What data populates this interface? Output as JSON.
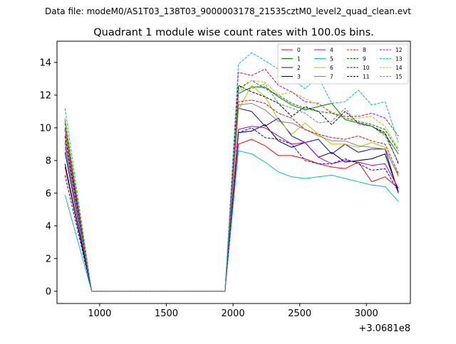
{
  "figure": {
    "suptitle": "Data file: modeM0/AS1T03_138T03_9000003178_21535cztM0_level2_quad_clean.evt",
    "title": "Quadrant 1 module wise count rates with 100.0s bins.",
    "x_offset_label": "+3.0681e8"
  },
  "chart_data": {
    "type": "line",
    "title": "Quadrant 1 module wise count rates with 100.0s bins.",
    "xlabel": "",
    "ylabel": "",
    "x_offset": 306810000,
    "xlim": [
      680,
      3330
    ],
    "ylim": [
      -0.75,
      15.3
    ],
    "xticks": [
      1000,
      1500,
      2000,
      2500,
      3000
    ],
    "xtick_labels": [
      "1000",
      "1500",
      "2000",
      "2500",
      "3000"
    ],
    "yticks": [
      0,
      2,
      4,
      6,
      8,
      10,
      12,
      14
    ],
    "ytick_labels": [
      "0",
      "2",
      "4",
      "6",
      "8",
      "10",
      "12",
      "14"
    ],
    "grid": false,
    "legend_position": "top-right",
    "x": [
      740,
      940,
      1040,
      1140,
      1240,
      1340,
      1440,
      1540,
      1640,
      1740,
      1840,
      1940,
      2040,
      2140,
      2240,
      2340,
      2440,
      2540,
      2640,
      2740,
      2840,
      2940,
      3040,
      3140,
      3240
    ],
    "series": [
      {
        "name": "0",
        "color": "#ff0000",
        "dash": "solid",
        "values": [
          7.6,
          0,
          0,
          0,
          0,
          0,
          0,
          0,
          0,
          0,
          0,
          0,
          9.0,
          9.3,
          8.9,
          8.3,
          8.3,
          8.1,
          7.8,
          7.6,
          7.5,
          7.9,
          6.7,
          7.0,
          6.3
        ]
      },
      {
        "name": "1",
        "color": "#008000",
        "dash": "solid",
        "values": [
          10.5,
          0,
          0,
          0,
          0,
          0,
          0,
          0,
          0,
          0,
          0,
          0,
          12.1,
          12.5,
          12.5,
          11.9,
          11.4,
          11.1,
          11.3,
          11.5,
          10.5,
          10.3,
          10.1,
          9.6,
          8.4
        ]
      },
      {
        "name": "2",
        "color": "#0000ff",
        "dash": "solid",
        "values": [
          8.5,
          0,
          0,
          0,
          0,
          0,
          0,
          0,
          0,
          0,
          0,
          0,
          11.2,
          11.0,
          10.1,
          10.6,
          9.5,
          9.1,
          9.3,
          8.4,
          9.0,
          8.5,
          8.7,
          8.7,
          6.0
        ]
      },
      {
        "name": "3",
        "color": "#000000",
        "dash": "solid",
        "values": [
          7.8,
          0,
          0,
          0,
          0,
          0,
          0,
          0,
          0,
          0,
          0,
          0,
          9.7,
          9.8,
          10.2,
          9.2,
          8.8,
          9.1,
          8.2,
          8.5,
          7.9,
          8.0,
          8.1,
          8.4,
          6.1
        ]
      },
      {
        "name": "4",
        "color": "#bf00bf",
        "dash": "solid",
        "values": [
          9.1,
          0,
          0,
          0,
          0,
          0,
          0,
          0,
          0,
          0,
          0,
          0,
          9.9,
          10.1,
          10.0,
          9.5,
          9.0,
          9.1,
          8.2,
          7.8,
          8.0,
          7.9,
          7.7,
          7.8,
          6.3
        ]
      },
      {
        "name": "5",
        "color": "#00bfbf",
        "dash": "solid",
        "values": [
          5.9,
          0,
          0,
          0,
          0,
          0,
          0,
          0,
          0,
          0,
          0,
          0,
          8.6,
          8.4,
          7.9,
          7.3,
          7.0,
          6.9,
          7.0,
          7.1,
          6.9,
          6.7,
          6.5,
          6.4,
          5.5
        ]
      },
      {
        "name": "6",
        "color": "#bfbf00",
        "dash": "solid",
        "values": [
          9.6,
          0,
          0,
          0,
          0,
          0,
          0,
          0,
          0,
          0,
          0,
          0,
          11.1,
          12.6,
          11.9,
          10.5,
          9.6,
          10.3,
          9.6,
          9.0,
          9.0,
          8.8,
          9.1,
          8.8,
          7.0
        ]
      },
      {
        "name": "7",
        "color": "#808080",
        "dash": "solid",
        "values": [
          8.8,
          0,
          0,
          0,
          0,
          0,
          0,
          0,
          0,
          0,
          0,
          0,
          11.4,
          11.5,
          11.1,
          10.4,
          10.3,
          9.9,
          9.5,
          9.2,
          9.2,
          8.9,
          8.8,
          8.7,
          7.1
        ]
      },
      {
        "name": "8",
        "color": "#ff0000",
        "dash": "dashed",
        "values": [
          9.9,
          0,
          0,
          0,
          0,
          0,
          0,
          0,
          0,
          0,
          0,
          0,
          11.6,
          11.7,
          11.5,
          10.9,
          10.6,
          9.9,
          9.6,
          9.4,
          9.3,
          9.5,
          9.2,
          9.0,
          7.2
        ]
      },
      {
        "name": "9",
        "color": "#008000",
        "dash": "dashed",
        "values": [
          10.3,
          0,
          0,
          0,
          0,
          0,
          0,
          0,
          0,
          0,
          0,
          0,
          12.4,
          12.9,
          12.4,
          12.0,
          11.5,
          11.2,
          11.0,
          10.9,
          10.6,
          10.4,
          10.2,
          9.9,
          8.6
        ]
      },
      {
        "name": "10",
        "color": "#0000ff",
        "dash": "dashed",
        "values": [
          7.1,
          0,
          0,
          0,
          0,
          0,
          0,
          0,
          0,
          0,
          0,
          0,
          9.7,
          10.0,
          9.4,
          9.3,
          9.0,
          8.0,
          7.8,
          7.8,
          8.1,
          7.8,
          7.4,
          7.5,
          6.1
        ]
      },
      {
        "name": "11",
        "color": "#000000",
        "dash": "dashed",
        "values": [
          9.5,
          0,
          0,
          0,
          0,
          0,
          0,
          0,
          0,
          0,
          0,
          0,
          12.6,
          12.2,
          11.9,
          11.5,
          10.7,
          11.3,
          11.0,
          10.2,
          11.0,
          10.3,
          10.1,
          9.7,
          7.8
        ]
      },
      {
        "name": "12",
        "color": "#bf00bf",
        "dash": "dashed",
        "values": [
          10.0,
          0,
          0,
          0,
          0,
          0,
          0,
          0,
          0,
          0,
          0,
          0,
          13.4,
          13.2,
          13.6,
          12.6,
          12.2,
          11.6,
          11.5,
          10.9,
          10.7,
          10.7,
          10.9,
          10.6,
          9.5
        ]
      },
      {
        "name": "13",
        "color": "#00bfbf",
        "dash": "dashed",
        "values": [
          11.2,
          0,
          0,
          0,
          0,
          0,
          0,
          0,
          0,
          0,
          0,
          0,
          13.9,
          14.6,
          14.1,
          13.6,
          13.0,
          12.4,
          13.1,
          11.5,
          11.6,
          12.3,
          11.4,
          11.6,
          9.1
        ]
      },
      {
        "name": "14",
        "color": "#bfbf00",
        "dash": "dashed",
        "values": [
          10.6,
          0,
          0,
          0,
          0,
          0,
          0,
          0,
          0,
          0,
          0,
          0,
          12.3,
          12.9,
          12.8,
          12.0,
          12.2,
          11.8,
          11.4,
          11.0,
          10.6,
          10.6,
          10.7,
          10.1,
          8.7
        ]
      },
      {
        "name": "15",
        "color": "#808080",
        "dash": "dashed",
        "values": [
          9.2,
          0,
          0,
          0,
          0,
          0,
          0,
          0,
          0,
          0,
          0,
          0,
          12.3,
          12.4,
          12.7,
          11.5,
          11.2,
          10.9,
          10.3,
          10.4,
          11.2,
          10.2,
          10.1,
          9.5,
          7.9
        ]
      }
    ]
  }
}
